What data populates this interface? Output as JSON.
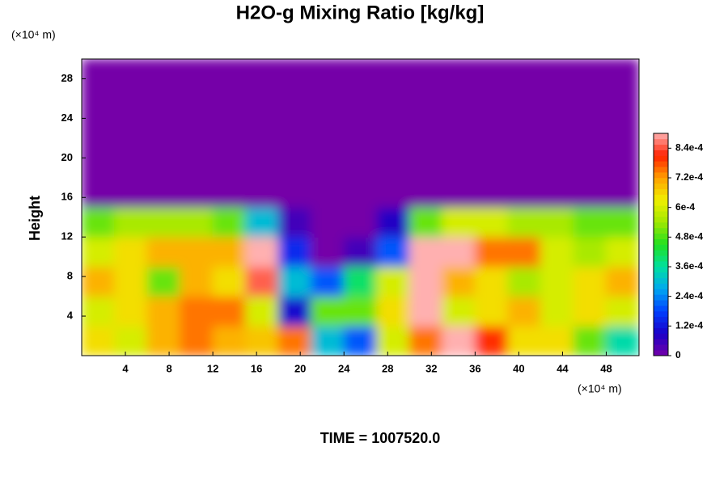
{
  "chart_data": {
    "type": "heatmap",
    "title": "H2O-g Mixing Ratio [kg/kg]",
    "y_label": "Height",
    "x_unit": "(×10⁴ m)",
    "y_unit": "(×10⁴ m)",
    "time_label": "TIME = 1007520.0",
    "x_edges": [
      0,
      3,
      6,
      9,
      12,
      15,
      18,
      21,
      24,
      27,
      30,
      33,
      36,
      39,
      42,
      45,
      48,
      51
    ],
    "y_edges": [
      0,
      3,
      6,
      9,
      12,
      15,
      18,
      21,
      24,
      27,
      30
    ],
    "z": [
      [
        0.00065,
        0.0006,
        0.0007,
        0.00075,
        0.0007,
        0.00068,
        0.00075,
        0.0003,
        0.0002,
        0.0006,
        0.00075,
        0.0009,
        0.0008,
        0.00065,
        0.00065,
        0.0005,
        0.00035
      ],
      [
        0.0006,
        0.00065,
        0.0007,
        0.00075,
        0.00075,
        0.0006,
        0.0001,
        0.0005,
        0.0005,
        0.00065,
        0.0009,
        0.0006,
        0.00065,
        0.0007,
        0.0006,
        0.00065,
        0.0006
      ],
      [
        0.0007,
        0.00065,
        0.0005,
        0.0007,
        0.00065,
        0.00085,
        0.0003,
        0.0002,
        0.0004,
        0.0006,
        0.0009,
        0.0007,
        0.00065,
        0.00055,
        0.0006,
        0.00065,
        0.0007
      ],
      [
        0.0006,
        0.00065,
        0.0007,
        0.0007,
        0.0007,
        0.0009,
        0.00015,
        0,
        5e-05,
        0.0002,
        0.0009,
        0.0009,
        0.00075,
        0.00075,
        0.0006,
        0.00055,
        0.0006
      ],
      [
        0.0005,
        0.00055,
        0.00055,
        0.00055,
        0.0005,
        0.0003,
        5e-05,
        0,
        0,
        8e-05,
        0.0005,
        0.0006,
        0.0006,
        0.00055,
        0.00055,
        0.0005,
        0.0005
      ],
      [
        0,
        0,
        0,
        0,
        0,
        0,
        0,
        0,
        0,
        0,
        0,
        0,
        0,
        0,
        0,
        0,
        0
      ],
      [
        0,
        0,
        0,
        0,
        0,
        0,
        0,
        0,
        0,
        0,
        0,
        0,
        0,
        0,
        0,
        0,
        0
      ],
      [
        0,
        0,
        0,
        0,
        0,
        0,
        0,
        0,
        0,
        0,
        0,
        0,
        0,
        0,
        0,
        0,
        0
      ],
      [
        0,
        0,
        0,
        0,
        0,
        0,
        0,
        0,
        0,
        0,
        0,
        0,
        0,
        0,
        0,
        0,
        0
      ],
      [
        0,
        0,
        0,
        0,
        0,
        0,
        0,
        0,
        0,
        0,
        0,
        0,
        0,
        0,
        0,
        0,
        0
      ]
    ],
    "xlim": [
      0,
      51
    ],
    "ylim": [
      0,
      30
    ],
    "xticks": [
      4,
      8,
      12,
      16,
      20,
      24,
      28,
      32,
      36,
      40,
      44,
      48
    ],
    "yticks": [
      4,
      8,
      12,
      16,
      20,
      24,
      28
    ],
    "zlim": [
      0,
      0.0009
    ],
    "zticks": [
      0,
      {
        "value": 0.00012,
        "label": "1.2e-4"
      },
      {
        "value": 0.00024,
        "label": "2.4e-4"
      },
      {
        "value": 0.00036,
        "label": "3.6e-4"
      },
      {
        "value": 0.00048,
        "label": "4.8e-4"
      },
      {
        "value": 0.0006,
        "label": "6e-4"
      },
      {
        "value": 0.00072,
        "label": "7.2e-4"
      },
      {
        "value": 0.00084,
        "label": "8.4e-4"
      }
    ],
    "colormap": [
      "#7400a8",
      "#1a00c8",
      "#0040ff",
      "#00a8f0",
      "#00e0a0",
      "#20e020",
      "#a0e800",
      "#f0f000",
      "#ffa000",
      "#ff2000",
      "#ffb0b0"
    ]
  }
}
